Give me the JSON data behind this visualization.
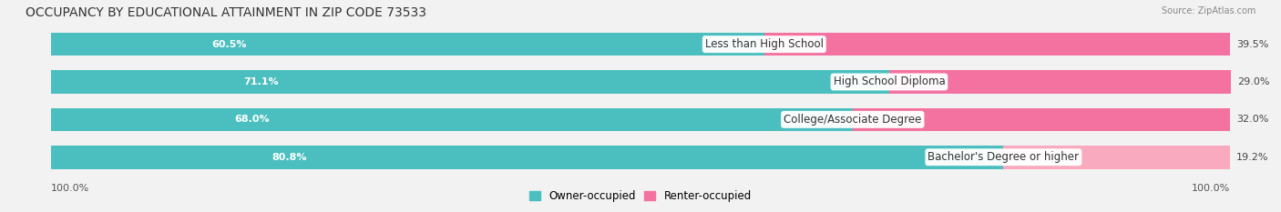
{
  "title": "OCCUPANCY BY EDUCATIONAL ATTAINMENT IN ZIP CODE 73533",
  "source": "Source: ZipAtlas.com",
  "categories": [
    "Less than High School",
    "High School Diploma",
    "College/Associate Degree",
    "Bachelor's Degree or higher"
  ],
  "owner_values": [
    60.5,
    71.1,
    68.0,
    80.8
  ],
  "renter_values": [
    39.5,
    29.0,
    32.0,
    19.2
  ],
  "owner_color": "#4BBFBF",
  "renter_colors": [
    "#F472A0",
    "#F472A0",
    "#F472A0",
    "#F9AABF"
  ],
  "bg_row_color": "#e8e8e8",
  "background_color": "#f2f2f2",
  "title_fontsize": 10,
  "label_fontsize": 8.5,
  "pct_fontsize": 8,
  "axis_label_left": "100.0%",
  "axis_label_right": "100.0%",
  "legend_owner": "Owner-occupied",
  "legend_renter": "Renter-occupied",
  "legend_owner_color": "#4BBFBF",
  "legend_renter_color": "#F472A0"
}
